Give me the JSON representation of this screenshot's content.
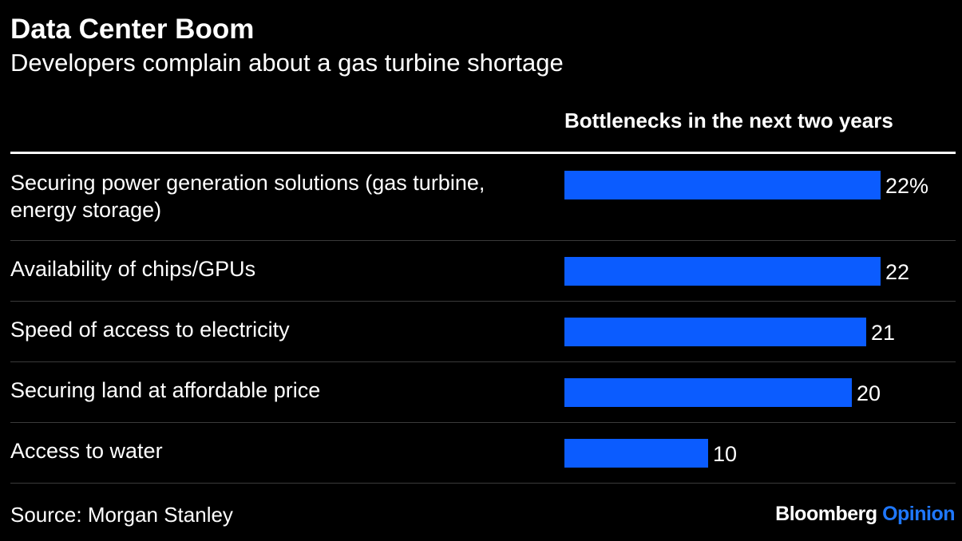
{
  "header": {
    "title": "Data Center Boom",
    "subtitle": "Developers complain about a gas turbine shortage"
  },
  "chart_data": {
    "type": "bar",
    "orientation": "horizontal",
    "title": "Bottlenecks in the next two years",
    "categories": [
      "Securing power generation solutions (gas turbine, energy storage)",
      "Availability of chips/GPUs",
      "Speed of access to electricity",
      "Securing land at affordable price",
      "Access to water"
    ],
    "values": [
      22,
      22,
      21,
      20,
      10
    ],
    "value_labels": [
      "22%",
      "22",
      "21",
      "20",
      "10"
    ],
    "unit": "%",
    "xlim": [
      0,
      22
    ],
    "grid": false,
    "bar_color": "#0b5cff"
  },
  "footer": {
    "source": "Source: Morgan Stanley",
    "logo_brand": "Bloomberg",
    "logo_opinion": "Opinion"
  },
  "colors": {
    "background": "#000000",
    "text": "#ffffff",
    "bar": "#0b5cff",
    "logo_accent": "#1f78ff",
    "separator": "#3a3a3a"
  }
}
